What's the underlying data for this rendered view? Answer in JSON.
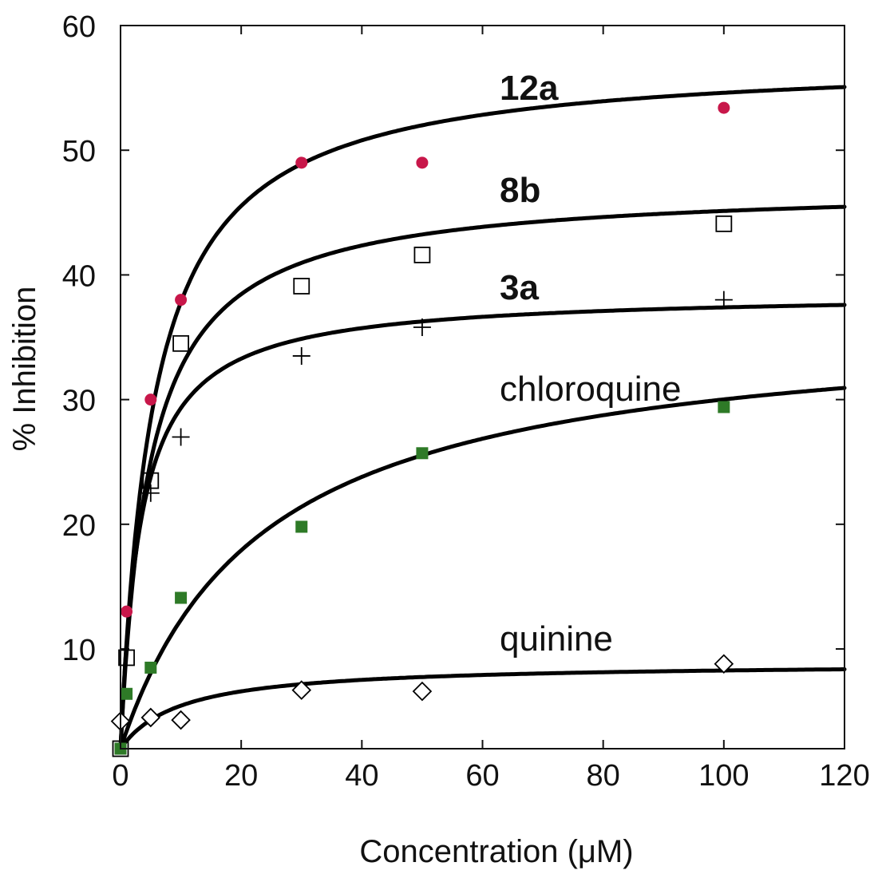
{
  "chart_data": {
    "type": "scatter",
    "title": "",
    "xlabel": "Concentration (μM)",
    "ylabel": "% Inhibition",
    "xlim": [
      0,
      120
    ],
    "ylim": [
      2,
      60
    ],
    "xticks": [
      0,
      20,
      40,
      60,
      80,
      100,
      120
    ],
    "yticks": [
      10,
      20,
      30,
      40,
      50,
      60
    ],
    "grid": false,
    "legend": "none",
    "series": [
      {
        "name": "12a",
        "label_bold": true,
        "marker": "filled-circle",
        "color": "#c8174a",
        "x": [
          1,
          5,
          10,
          30,
          50,
          100
        ],
        "y": [
          13,
          30,
          38,
          49,
          49,
          53.4
        ],
        "fit": {
          "model": "hyperbolic",
          "vmax": 55.5,
          "k": 5.5,
          "y0": 2
        }
      },
      {
        "name": "8b",
        "label_bold": true,
        "marker": "open-square",
        "color": "#000000",
        "x": [
          0,
          1,
          5,
          10,
          30,
          50,
          100
        ],
        "y": [
          2,
          9.3,
          23.5,
          34.5,
          39.1,
          41.6,
          44.1
        ],
        "fit": {
          "model": "hyperbolic",
          "vmax": 45.2,
          "k": 4.8,
          "y0": 2
        }
      },
      {
        "name": "3a",
        "label_bold": true,
        "marker": "plus",
        "color": "#000000",
        "x": [
          5,
          10,
          30,
          50,
          100
        ],
        "y": [
          22.5,
          27,
          33.5,
          35.8,
          38
        ],
        "fit": {
          "model": "hyperbolic",
          "vmax": 36.6,
          "k": 3.4,
          "y0": 2
        }
      },
      {
        "name": "chloroquine",
        "label_bold": false,
        "marker": "filled-square",
        "color": "#2e7a27",
        "x": [
          0,
          1,
          5,
          10,
          30,
          50,
          100
        ],
        "y": [
          2,
          6.4,
          8.5,
          14.1,
          19.8,
          25.7,
          29.4
        ],
        "fit": {
          "model": "hyperbolic",
          "vmax": 34.6,
          "k": 23.5,
          "y0": 2
        }
      },
      {
        "name": "quinine",
        "label_bold": false,
        "marker": "open-diamond",
        "color": "#000000",
        "x": [
          0,
          5,
          10,
          30,
          50,
          100
        ],
        "y": [
          4.2,
          4.5,
          4.3,
          6.7,
          6.6,
          8.8
        ],
        "fit": {
          "model": "hyperbolic",
          "vmax": 6.9,
          "k": 10,
          "y0": 2
        }
      }
    ]
  }
}
